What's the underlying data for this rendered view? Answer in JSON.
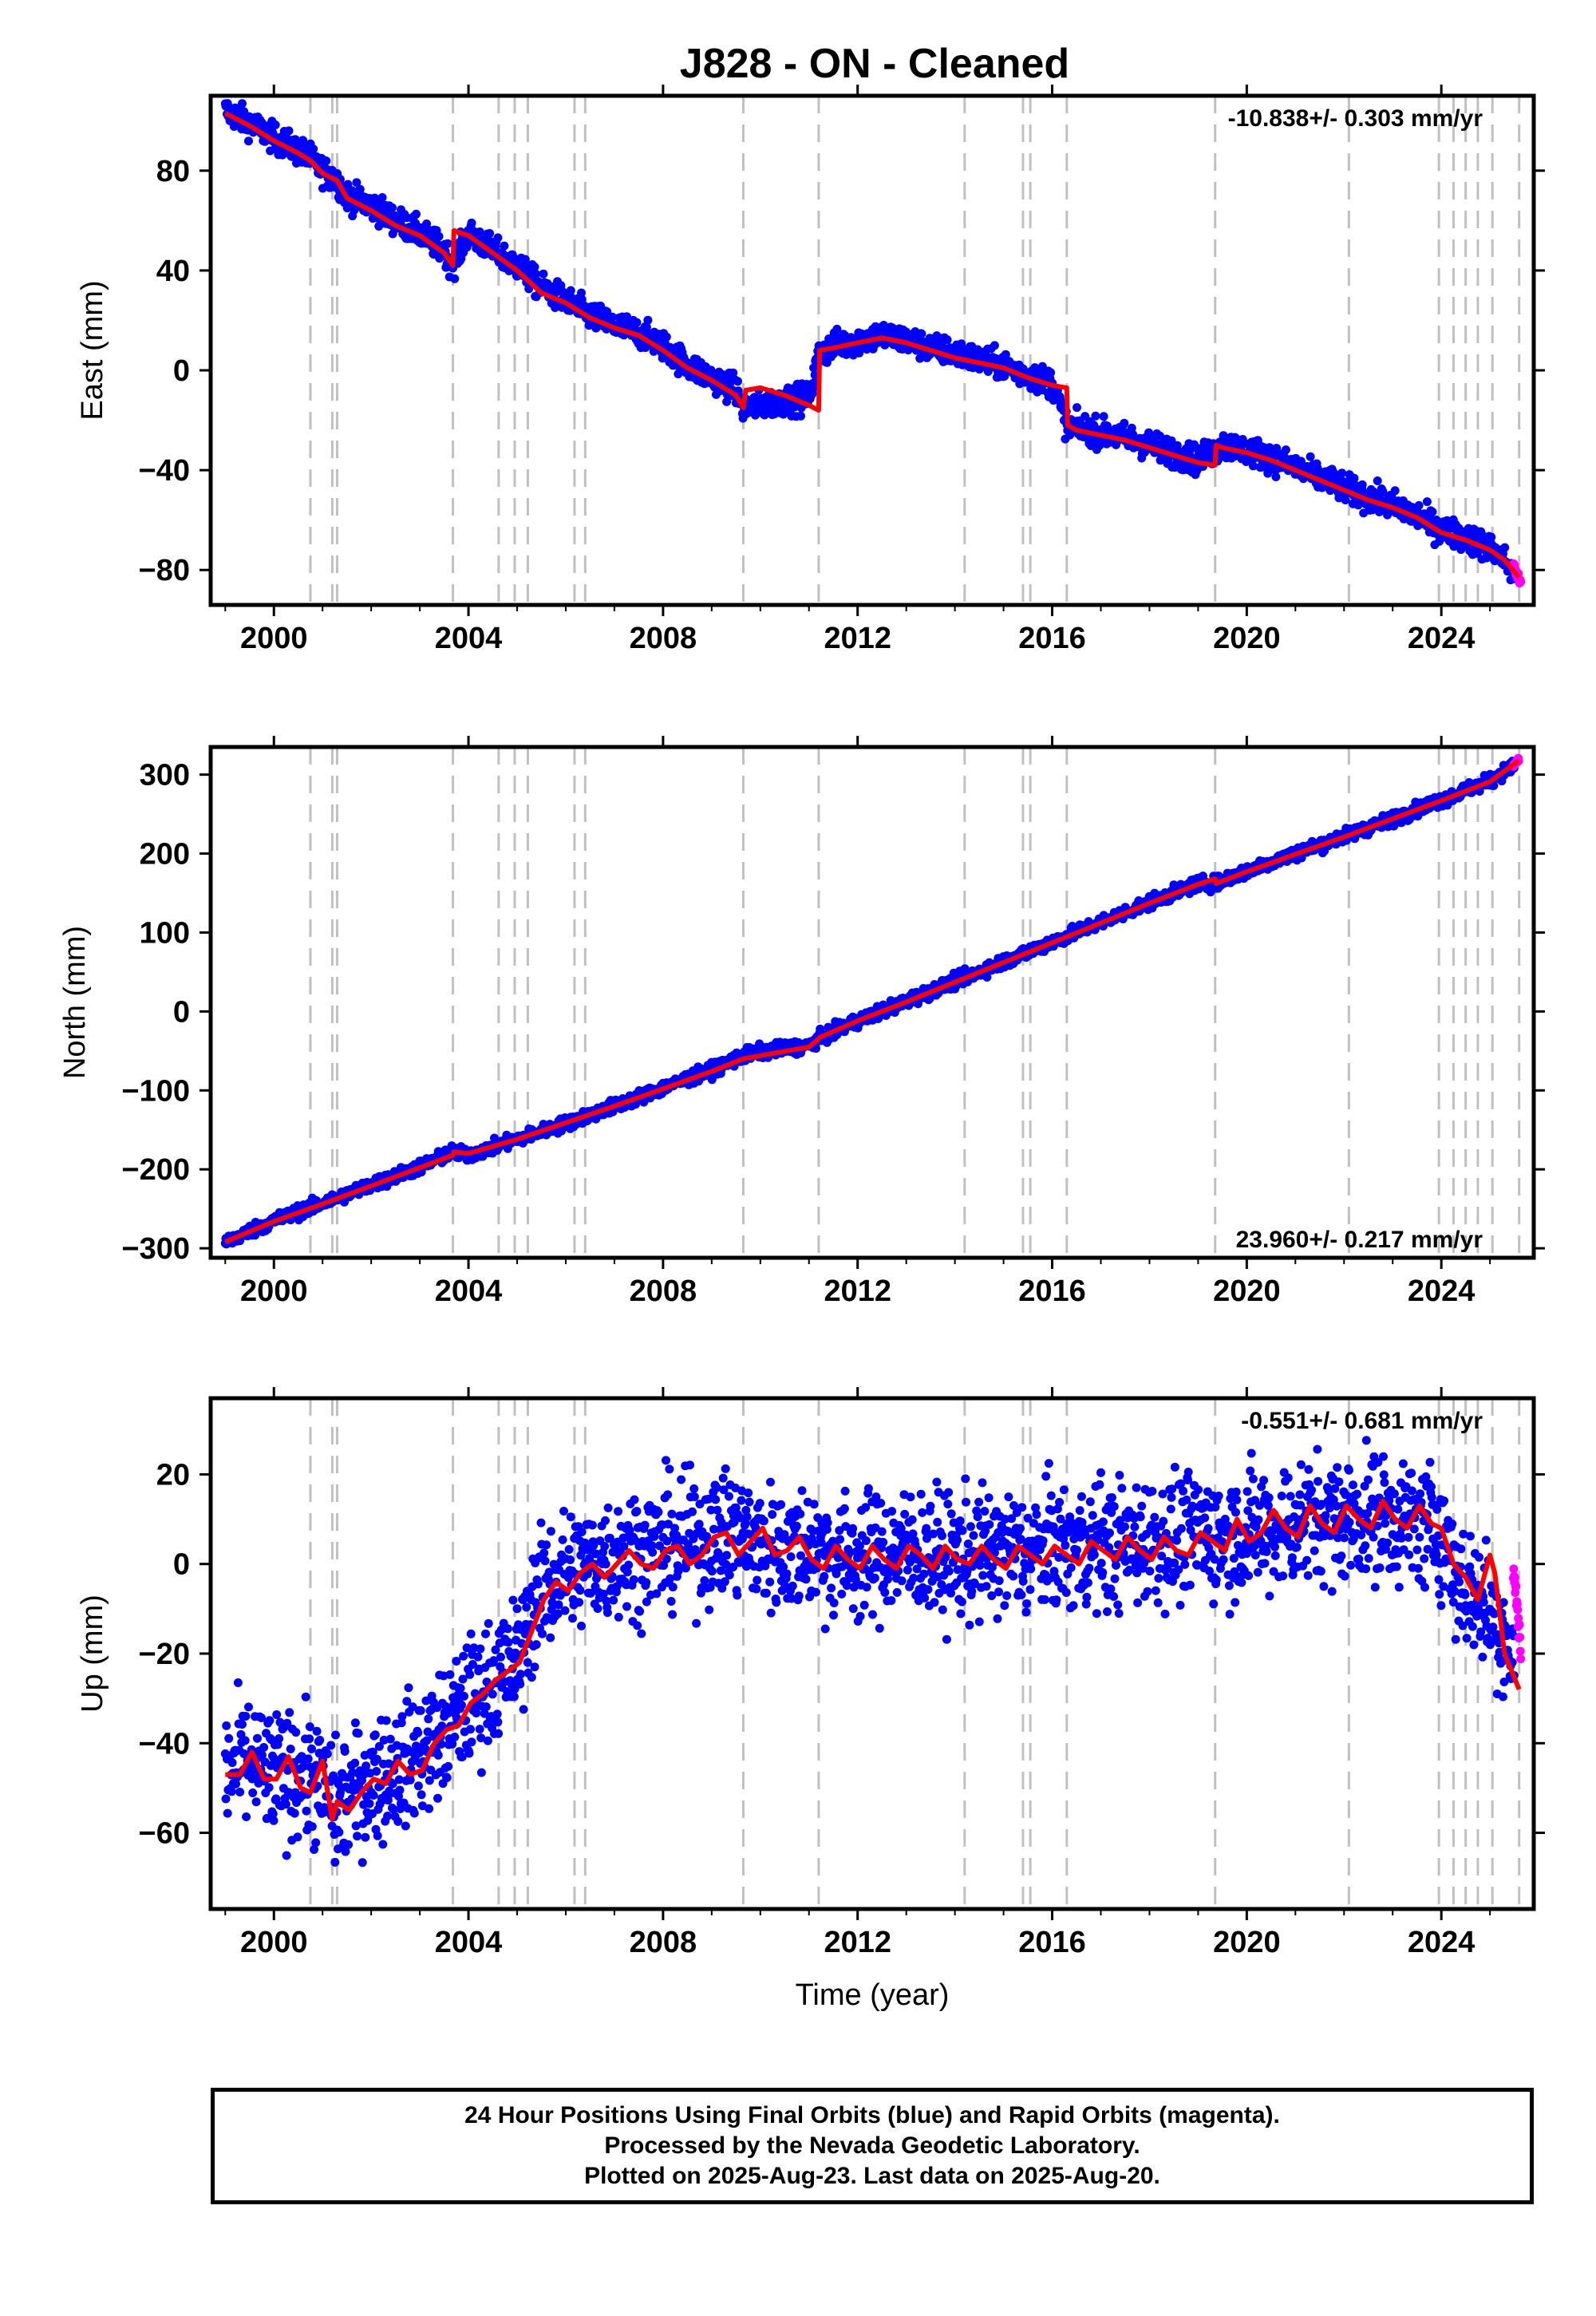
{
  "station_title": "J828  - ON - Cleaned",
  "footer": {
    "line1": "24 Hour Positions Using Final Orbits (blue) and Rapid Orbits (magenta).",
    "line2": "Processed by the Nevada Geodetic Laboratory.",
    "line3": "Plotted on 2025-Aug-23. Last data on 2025-Aug-20."
  },
  "colors": {
    "final_orbits": "#0000ff",
    "rapid_orbits": "#ff00ff",
    "model_fit": "#ff0000",
    "event_lines": "#c0c0c0"
  },
  "chart_data": [
    {
      "type": "scatter",
      "component": "East",
      "ylabel": "East (mm)",
      "xlabel": "",
      "xlim": [
        1998.7,
        2025.9
      ],
      "ylim": [
        -94,
        110
      ],
      "xticks": [
        2000,
        2004,
        2008,
        2012,
        2016,
        2020,
        2024
      ],
      "yticks": [
        -80,
        -40,
        0,
        40,
        80
      ],
      "velocity_label": "-10.838+/- 0.303 mm/yr",
      "velocity_label_position": "top-right",
      "event_lines": [
        2000.75,
        2001.2,
        2001.3,
        2003.68,
        2004.62,
        2004.95,
        2005.22,
        2006.18,
        2006.4,
        2009.65,
        2011.2,
        2014.2,
        2015.4,
        2015.55,
        2016.3,
        2019.35,
        2022.1,
        2023.95,
        2024.25,
        2024.5,
        2024.75,
        2025.05,
        2025.6
      ],
      "series": [
        {
          "name": "Final Orbits",
          "style": "points",
          "x": [
            1999.0,
            1999.5,
            2000.0,
            2000.5,
            2000.75,
            2001.0,
            2001.3,
            2001.5,
            2002.0,
            2002.5,
            2003.0,
            2003.5,
            2003.68,
            2004.0,
            2004.5,
            2005.0,
            2005.5,
            2006.0,
            2006.5,
            2007.0,
            2007.5,
            2008.0,
            2008.5,
            2009.0,
            2009.5,
            2009.65,
            2010.0,
            2010.5,
            2011.0,
            2011.2,
            2011.5,
            2012.0,
            2012.5,
            2013.0,
            2013.5,
            2014.0,
            2014.5,
            2015.0,
            2015.5,
            2016.0,
            2016.3,
            2016.5,
            2017.0,
            2017.5,
            2018.0,
            2018.5,
            2019.0,
            2019.35,
            2019.5,
            2020.0,
            2020.5,
            2021.0,
            2021.5,
            2022.0,
            2022.5,
            2023.0,
            2023.5,
            2024.0,
            2024.5,
            2025.0,
            2025.3,
            2025.5
          ],
          "y": [
            104,
            99,
            93,
            88,
            85,
            80,
            76,
            70,
            66,
            60,
            55,
            48,
            42,
            55,
            48,
            42,
            33,
            28,
            22,
            18,
            15,
            10,
            2,
            -3,
            -8,
            -15,
            -14,
            -12,
            -11,
            6,
            10,
            12,
            14,
            12,
            9,
            7,
            4,
            2,
            -2,
            -5,
            -22,
            -23,
            -25,
            -27,
            -30,
            -33,
            -36,
            -32,
            -30,
            -32,
            -35,
            -39,
            -43,
            -47,
            -51,
            -54,
            -58,
            -64,
            -67,
            -71,
            -76,
            -82
          ]
        },
        {
          "name": "Rapid Orbits",
          "style": "points",
          "x": [
            2025.48,
            2025.52,
            2025.56,
            2025.6,
            2025.64
          ],
          "y": [
            -78,
            -80,
            -82,
            -84,
            -86
          ]
        },
        {
          "name": "Model",
          "style": "line",
          "x": [
            1999.0,
            1999.5,
            2000.0,
            2000.5,
            2000.75,
            2001.0,
            2001.3,
            2001.5,
            2002.0,
            2002.5,
            2003.0,
            2003.5,
            2003.68,
            2003.7,
            2004.0,
            2004.5,
            2005.0,
            2005.5,
            2006.0,
            2006.5,
            2007.0,
            2007.5,
            2008.0,
            2008.5,
            2009.0,
            2009.5,
            2009.65,
            2009.7,
            2010.0,
            2010.5,
            2011.0,
            2011.2,
            2011.22,
            2011.5,
            2012.0,
            2012.5,
            2013.0,
            2013.5,
            2014.0,
            2014.5,
            2015.0,
            2015.5,
            2016.0,
            2016.3,
            2016.32,
            2016.5,
            2017.0,
            2017.5,
            2018.0,
            2018.5,
            2019.0,
            2019.35,
            2019.37,
            2019.5,
            2020.0,
            2020.5,
            2021.0,
            2021.5,
            2022.0,
            2022.5,
            2023.0,
            2023.5,
            2024.0,
            2024.5,
            2025.0,
            2025.3,
            2025.6
          ],
          "y": [
            103,
            98,
            92,
            87,
            84,
            79,
            76,
            69,
            64,
            58,
            54,
            47,
            42,
            56,
            54,
            47,
            40,
            31,
            27,
            21,
            17,
            14,
            8,
            1,
            -4,
            -10,
            -15,
            -8,
            -7,
            -10,
            -14,
            -16,
            8,
            9,
            11,
            13,
            11,
            8,
            5,
            3,
            1,
            -3,
            -6,
            -7,
            -22,
            -24,
            -26,
            -28,
            -31,
            -34,
            -37,
            -38,
            -30,
            -31,
            -33,
            -36,
            -40,
            -44,
            -48,
            -52,
            -55,
            -59,
            -65,
            -68,
            -72,
            -76,
            -83
          ]
        }
      ]
    },
    {
      "type": "scatter",
      "component": "North",
      "ylabel": "North (mm)",
      "xlabel": "",
      "xlim": [
        1998.7,
        2025.9
      ],
      "ylim": [
        -312,
        335
      ],
      "xticks": [
        2000,
        2004,
        2008,
        2012,
        2016,
        2020,
        2024
      ],
      "yticks": [
        -300,
        -200,
        -100,
        0,
        100,
        200,
        300
      ],
      "velocity_label": "23.960+/- 0.217 mm/yr",
      "velocity_label_position": "bottom-right",
      "event_lines": [
        2000.75,
        2001.2,
        2001.3,
        2003.68,
        2004.62,
        2004.95,
        2005.22,
        2006.18,
        2006.4,
        2009.65,
        2011.2,
        2014.2,
        2015.4,
        2015.55,
        2016.3,
        2019.35,
        2022.1,
        2023.95,
        2024.25,
        2024.5,
        2024.75,
        2025.05,
        2025.6
      ],
      "series": [
        {
          "name": "Final Orbits",
          "style": "points",
          "x": [
            1999.0,
            2000.0,
            2001.0,
            2002.0,
            2003.0,
            2003.68,
            2004.0,
            2005.0,
            2006.0,
            2007.0,
            2008.0,
            2009.0,
            2009.65,
            2010.0,
            2011.0,
            2011.2,
            2012.0,
            2013.0,
            2014.0,
            2015.0,
            2016.0,
            2017.0,
            2018.0,
            2019.0,
            2019.35,
            2020.0,
            2021.0,
            2022.0,
            2023.0,
            2024.0,
            2025.0,
            2025.5
          ],
          "y": [
            -292,
            -265,
            -243,
            -220,
            -197,
            -178,
            -182,
            -162,
            -142,
            -120,
            -97,
            -74,
            -56,
            -51,
            -43,
            -35,
            -12,
            13,
            38,
            63,
            88,
            113,
            138,
            162,
            162,
            178,
            200,
            222,
            244,
            268,
            292,
            312
          ]
        },
        {
          "name": "Rapid Orbits",
          "style": "points",
          "x": [
            2025.48,
            2025.52,
            2025.56,
            2025.6
          ],
          "y": [
            311,
            314,
            317,
            320
          ]
        },
        {
          "name": "Model",
          "style": "line",
          "x": [
            1999.0,
            2000.0,
            2001.0,
            2002.0,
            2003.0,
            2003.68,
            2003.7,
            2004.0,
            2005.0,
            2006.0,
            2007.0,
            2008.0,
            2009.0,
            2009.65,
            2010.0,
            2011.0,
            2011.2,
            2011.22,
            2012.0,
            2013.0,
            2014.0,
            2015.0,
            2016.0,
            2017.0,
            2018.0,
            2019.0,
            2019.35,
            2019.37,
            2020.0,
            2021.0,
            2022.0,
            2023.0,
            2024.0,
            2025.0,
            2025.6
          ],
          "y": [
            -292,
            -266,
            -244,
            -221,
            -198,
            -182,
            -178,
            -180,
            -162,
            -141,
            -120,
            -98,
            -76,
            -60,
            -56,
            -45,
            -35,
            -33,
            -12,
            12,
            37,
            62,
            87,
            112,
            137,
            161,
            168,
            162,
            177,
            199,
            221,
            244,
            267,
            291,
            318
          ]
        }
      ]
    },
    {
      "type": "scatter",
      "component": "Up",
      "ylabel": "Up (mm)",
      "xlabel": "Time (year)",
      "xlim": [
        1998.7,
        2025.9
      ],
      "ylim": [
        -77,
        37
      ],
      "xticks": [
        2000,
        2004,
        2008,
        2012,
        2016,
        2020,
        2024
      ],
      "yticks": [
        -60,
        -40,
        -20,
        0,
        20
      ],
      "velocity_label": "-0.551+/- 0.681 mm/yr",
      "velocity_label_position": "top-right",
      "event_lines": [
        2000.75,
        2001.2,
        2001.3,
        2003.68,
        2004.62,
        2004.95,
        2005.22,
        2006.18,
        2006.4,
        2009.65,
        2011.2,
        2014.2,
        2015.4,
        2015.55,
        2016.3,
        2019.35,
        2022.1,
        2023.95,
        2024.25,
        2024.5,
        2024.75,
        2025.05,
        2025.6
      ],
      "series": [
        {
          "name": "Final Orbits",
          "style": "points",
          "x": [
            1999.0,
            1999.5,
            2000.0,
            2000.5,
            2001.0,
            2001.3,
            2001.5,
            2002.0,
            2002.5,
            2003.0,
            2003.5,
            2004.0,
            2004.5,
            2005.0,
            2005.3,
            2005.6,
            2006.0,
            2006.5,
            2007.0,
            2007.5,
            2008.0,
            2008.5,
            2009.0,
            2009.5,
            2010.0,
            2010.5,
            2011.0,
            2011.5,
            2012.0,
            2012.5,
            2013.0,
            2013.5,
            2014.0,
            2014.5,
            2015.0,
            2015.5,
            2016.0,
            2016.5,
            2017.0,
            2017.5,
            2018.0,
            2018.5,
            2019.0,
            2019.5,
            2020.0,
            2020.5,
            2021.0,
            2021.5,
            2022.0,
            2022.5,
            2023.0,
            2023.5,
            2024.0,
            2024.3,
            2024.6,
            2025.0,
            2025.3,
            2025.5
          ],
          "y": [
            -47,
            -44,
            -48,
            -46,
            -50,
            -55,
            -52,
            -48,
            -46,
            -42,
            -38,
            -31,
            -26,
            -22,
            -10,
            -5,
            -2,
            0,
            2,
            3,
            4,
            5,
            6,
            7,
            4,
            3,
            4,
            2,
            1,
            2,
            3,
            2,
            1,
            2,
            3,
            2,
            4,
            3,
            5,
            4,
            6,
            5,
            7,
            6,
            7,
            8,
            9,
            10,
            10,
            11,
            10,
            9,
            8,
            -3,
            -6,
            -10,
            -15,
            -25
          ]
        },
        {
          "name": "Rapid Orbits",
          "style": "points",
          "x": [
            2025.48,
            2025.52,
            2025.56,
            2025.6,
            2025.64
          ],
          "y": [
            0,
            -5,
            -10,
            -15,
            -20
          ]
        },
        {
          "name": "Model",
          "style": "line",
          "x": [
            1999.0,
            1999.3,
            1999.55,
            1999.8,
            2000.05,
            2000.3,
            2000.55,
            2000.75,
            2001.0,
            2001.2,
            2001.3,
            2001.55,
            2001.8,
            2002.05,
            2002.3,
            2002.55,
            2002.8,
            2003.05,
            2003.3,
            2003.55,
            2003.8,
            2004.05,
            2004.3,
            2004.55,
            2004.8,
            2005.05,
            2005.3,
            2005.55,
            2005.8,
            2006.05,
            2006.3,
            2006.55,
            2006.8,
            2007.05,
            2007.3,
            2007.55,
            2007.8,
            2008.05,
            2008.3,
            2008.55,
            2008.8,
            2009.05,
            2009.3,
            2009.55,
            2009.8,
            2010.05,
            2010.3,
            2010.55,
            2010.8,
            2011.05,
            2011.3,
            2011.55,
            2011.8,
            2012.05,
            2012.3,
            2012.55,
            2012.8,
            2013.05,
            2013.3,
            2013.55,
            2013.8,
            2014.05,
            2014.3,
            2014.55,
            2014.8,
            2015.05,
            2015.3,
            2015.55,
            2015.8,
            2016.05,
            2016.3,
            2016.55,
            2016.8,
            2017.05,
            2017.3,
            2017.55,
            2017.8,
            2018.05,
            2018.3,
            2018.55,
            2018.8,
            2019.05,
            2019.3,
            2019.55,
            2019.8,
            2020.05,
            2020.3,
            2020.55,
            2020.8,
            2021.05,
            2021.3,
            2021.55,
            2021.8,
            2022.05,
            2022.3,
            2022.55,
            2022.8,
            2023.05,
            2023.3,
            2023.55,
            2023.8,
            2024.0,
            2024.25,
            2024.5,
            2024.75,
            2025.0,
            2025.1,
            2025.3,
            2025.6
          ],
          "y": [
            -47,
            -47,
            -42,
            -48,
            -48,
            -43,
            -50,
            -51,
            -44,
            -57,
            -53,
            -55,
            -51,
            -48,
            -49,
            -44,
            -47,
            -46,
            -40,
            -37,
            -36,
            -31,
            -29,
            -26,
            -24,
            -22,
            -15,
            -8,
            -4,
            -6,
            -2,
            0,
            -3,
            0,
            3,
            0,
            -1,
            3,
            4,
            0,
            2,
            6,
            7,
            2,
            5,
            8,
            2,
            3,
            6,
            1,
            -1,
            4,
            1,
            -1,
            4,
            1,
            -1,
            4,
            2,
            -1,
            4,
            1,
            0,
            4,
            1,
            -1,
            4,
            2,
            0,
            4,
            2,
            0,
            5,
            3,
            1,
            6,
            3,
            1,
            6,
            3,
            2,
            7,
            5,
            3,
            10,
            5,
            7,
            12,
            8,
            6,
            13,
            9,
            7,
            13,
            10,
            8,
            14,
            10,
            8,
            13,
            9,
            8,
            0,
            -3,
            -8,
            2,
            -2,
            -20,
            -28
          ]
        }
      ]
    }
  ]
}
